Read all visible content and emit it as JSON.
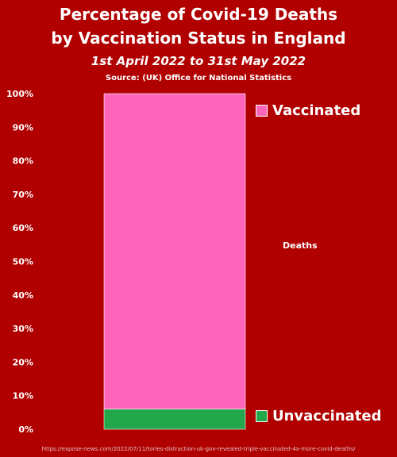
{
  "chart_data": {
    "type": "bar",
    "stacked": true,
    "title_lines": [
      "Percentage of Covid-19 Deaths",
      "by Vaccination Status in England"
    ],
    "subtitle": "1st April 2022 to 31st May 2022",
    "source": "Source: (UK)  Office for National Statistics",
    "categories": [
      "Deaths"
    ],
    "series": [
      {
        "name": "Unvaccinated",
        "values": [
          6
        ],
        "color": "#22a84a"
      },
      {
        "name": "Vaccinated",
        "values": [
          94
        ],
        "color": "#ff66bb"
      }
    ],
    "yticks": [
      "0%",
      "10%",
      "20%",
      "30%",
      "40%",
      "50%",
      "60%",
      "70%",
      "80%",
      "90%",
      "100%"
    ],
    "ylim": [
      0,
      100
    ],
    "grid": false,
    "legend": "right",
    "background": "#b00000"
  },
  "footer_url": "https://expose-news.com/2022/07/11/tories-distraction-uk-gov-revealed-triple-vaccinated-4x-more-covid-deaths/"
}
